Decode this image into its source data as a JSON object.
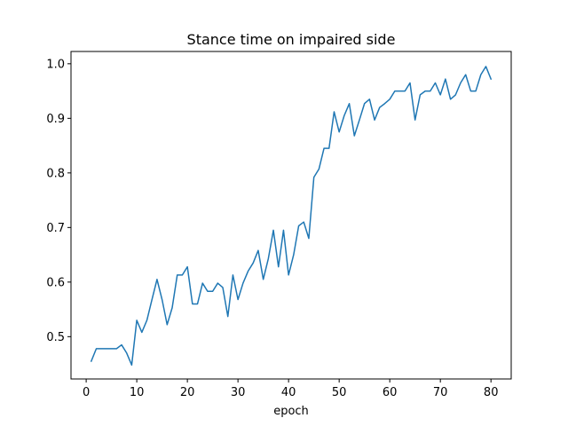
{
  "chart_data": {
    "type": "line",
    "title": "Stance time on impaired side",
    "xlabel": "epoch",
    "ylabel": "",
    "xlim": [
      -3,
      84
    ],
    "ylim": [
      0.4225,
      1.0225
    ],
    "xticks": [
      0,
      10,
      20,
      30,
      40,
      50,
      60,
      70,
      80
    ],
    "xtick_labels": [
      "0",
      "10",
      "20",
      "30",
      "40",
      "50",
      "60",
      "70",
      "80"
    ],
    "yticks": [
      0.5,
      0.6,
      0.7,
      0.8,
      0.9,
      1.0
    ],
    "ytick_labels": [
      "0.5",
      "0.6",
      "0.7",
      "0.8",
      "0.9",
      "1.0"
    ],
    "grid": false,
    "line_color": "#1f77b4",
    "series": [
      {
        "x": [
          1,
          2,
          3,
          4,
          5,
          6,
          7,
          8,
          9,
          10,
          11,
          12,
          13,
          14,
          15,
          16,
          17,
          18,
          19,
          20,
          21,
          22,
          23,
          24,
          25,
          26,
          27,
          28,
          29,
          30,
          31,
          32,
          33,
          34,
          35,
          36,
          37,
          38,
          39,
          40,
          41,
          42,
          43,
          44,
          45,
          46,
          47,
          48,
          49,
          50,
          51,
          52,
          53,
          54,
          55,
          56,
          57,
          58,
          59,
          60,
          61,
          62,
          63,
          64,
          65,
          66,
          67,
          68,
          69,
          70,
          71,
          72,
          73,
          74,
          75,
          76,
          77,
          78,
          79,
          80
        ],
        "values": [
          0.455,
          0.478,
          0.478,
          0.478,
          0.478,
          0.478,
          0.485,
          0.47,
          0.448,
          0.53,
          0.508,
          0.53,
          0.568,
          0.605,
          0.568,
          0.522,
          0.553,
          0.613,
          0.613,
          0.628,
          0.56,
          0.56,
          0.598,
          0.583,
          0.583,
          0.598,
          0.59,
          0.537,
          0.613,
          0.568,
          0.598,
          0.62,
          0.635,
          0.658,
          0.605,
          0.643,
          0.695,
          0.628,
          0.695,
          0.613,
          0.65,
          0.703,
          0.71,
          0.68,
          0.792,
          0.807,
          0.845,
          0.845,
          0.912,
          0.875,
          0.905,
          0.927,
          0.868,
          0.897,
          0.927,
          0.935,
          0.897,
          0.92,
          0.927,
          0.935,
          0.95,
          0.95,
          0.95,
          0.965,
          0.897,
          0.943,
          0.95,
          0.95,
          0.965,
          0.943,
          0.972,
          0.935,
          0.943,
          0.965,
          0.98,
          0.95,
          0.95,
          0.98,
          0.995,
          0.972
        ]
      }
    ]
  }
}
